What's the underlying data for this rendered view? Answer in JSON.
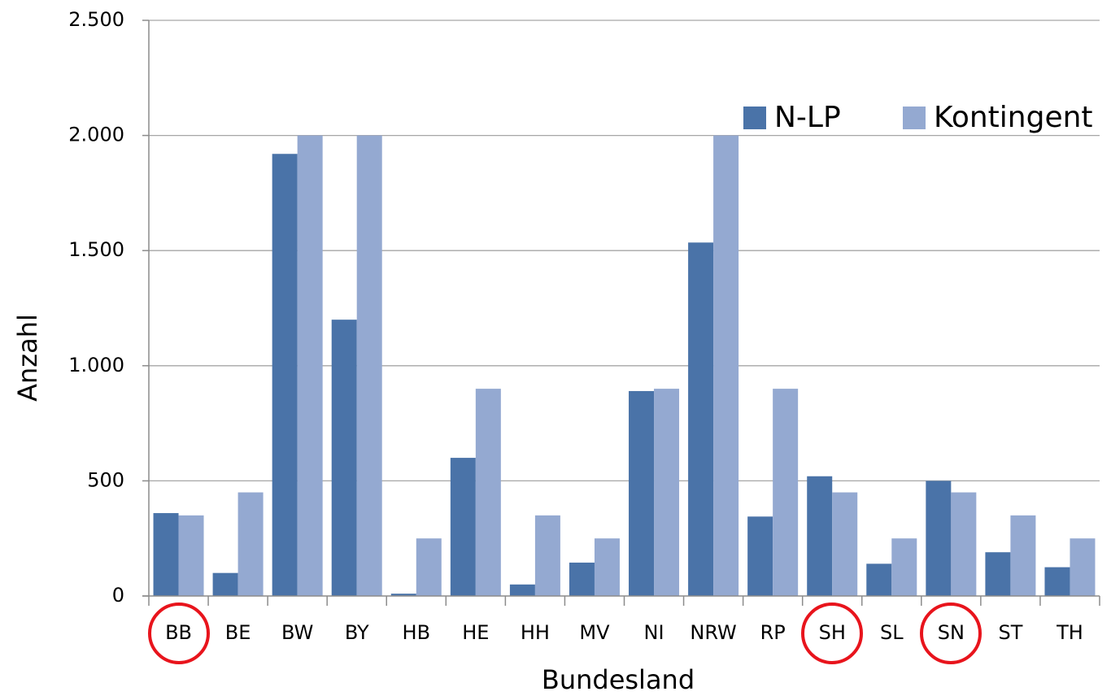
{
  "chart_data": {
    "type": "bar",
    "xlabel": "Bundesland",
    "ylabel": "Anzahl",
    "categories": [
      "BB",
      "BE",
      "BW",
      "BY",
      "HB",
      "HE",
      "HH",
      "MV",
      "NI",
      "NRW",
      "RP",
      "SH",
      "SL",
      "SN",
      "ST",
      "TH"
    ],
    "series": [
      {
        "name": "N-LP",
        "color": "#4a73a8",
        "values": [
          360,
          100,
          1920,
          1200,
          10,
          600,
          50,
          145,
          890,
          1535,
          345,
          520,
          140,
          500,
          190,
          125
        ]
      },
      {
        "name": "Kontingent",
        "color": "#94a9d1",
        "values": [
          350,
          450,
          2000,
          2000,
          250,
          900,
          350,
          250,
          900,
          2000,
          900,
          450,
          250,
          450,
          350,
          250
        ]
      }
    ],
    "ylim": [
      0,
      2500
    ],
    "yticks": [
      0,
      500,
      {
        "value": 1000,
        "label": "1.000"
      },
      {
        "value": 1500,
        "label": "1.500"
      },
      {
        "value": 2000,
        "label": "2.000"
      },
      {
        "value": 2500,
        "label": "2.500"
      }
    ],
    "grid": true,
    "legend": "upper right"
  }
}
